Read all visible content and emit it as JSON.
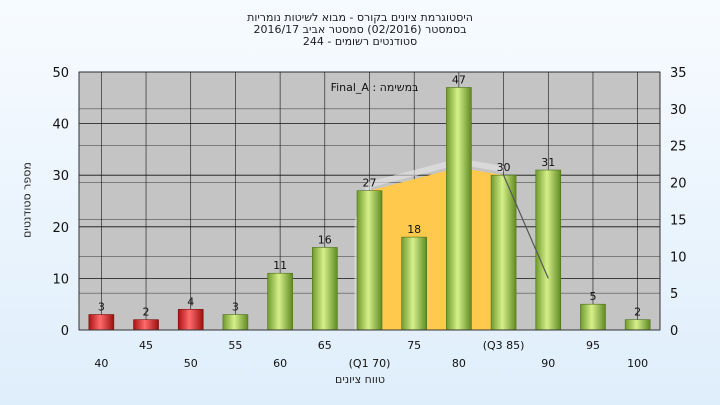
{
  "title_lines": [
    "היסטוגרמת ציונים בקורס - מבוא לשיטות נומריות",
    "בסמסטר  (02/2016)  סמסטר אביב 2016/17",
    "סטודנטים רשומים - 244"
  ],
  "chart_data": {
    "type": "bar",
    "title": "היסטוגרמת ציונים בקורס - מבוא לשיטות נומריות",
    "xlabel": "טווח ציונים",
    "ylabel": "מספר סטודנטים",
    "ylim": [
      0,
      50
    ],
    "y2lim": [
      0,
      35
    ],
    "yticks": [
      0,
      10,
      20,
      30,
      40,
      50
    ],
    "y2ticks": [
      0,
      5,
      10,
      15,
      20,
      25,
      30,
      35
    ],
    "grid": true,
    "categories": [
      "40",
      "45",
      "50",
      "55",
      "60",
      "65",
      "(Q1 70)",
      "75",
      "80",
      "(Q3 85)",
      "90",
      "95",
      "100"
    ],
    "values": [
      3,
      2,
      4,
      3,
      11,
      16,
      27,
      18,
      47,
      30,
      31,
      5,
      2
    ],
    "bar_colors": [
      "#d92a2a",
      "#d92a2a",
      "#d92a2a",
      "#8fc24a",
      "#8fc24a",
      "#8fc24a",
      "#8fc24a",
      "#8fc24a",
      "#8fc24a",
      "#8fc24a",
      "#8fc24a",
      "#8fc24a",
      "#8fc24a"
    ],
    "quartile_band": {
      "x": [
        "(Q1 70)",
        "80",
        "(Q3 85)"
      ],
      "y": [
        27,
        31.5,
        30
      ],
      "color": "#ffc94d"
    },
    "overlay_line": {
      "x": [
        "(Q3 85)",
        "90"
      ],
      "y": [
        30,
        10
      ],
      "color": "#555555"
    },
    "annotation": "Final_A : במשימה"
  }
}
